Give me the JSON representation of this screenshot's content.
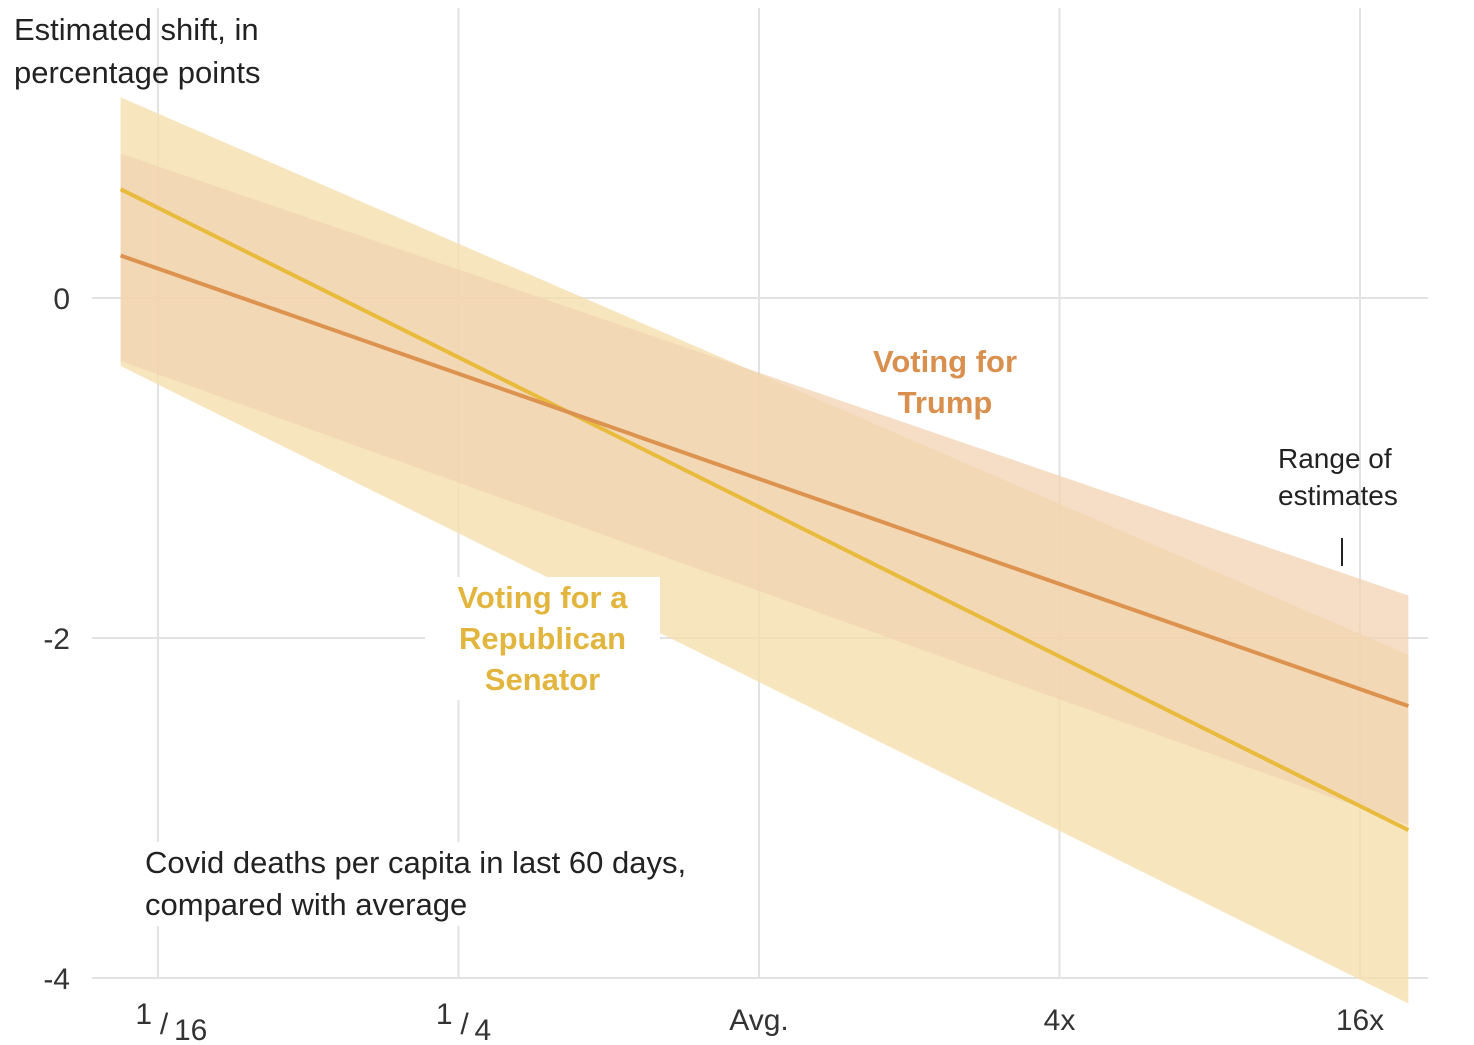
{
  "chart_data": {
    "type": "line",
    "ylabel": [
      "Estimated shift, in",
      "percentage points"
    ],
    "xlabel": [
      "Covid deaths per capita in last 60 days,",
      "compared with average"
    ],
    "x_scale": "log2",
    "x_ticks": [
      {
        "value": 0.0625,
        "num": "1",
        "den": "16"
      },
      {
        "value": 0.25,
        "num": "1",
        "den": "4"
      },
      {
        "value": 1,
        "label": "Avg."
      },
      {
        "value": 4,
        "label": "4x"
      },
      {
        "value": 16,
        "label": "16x"
      }
    ],
    "xlim": [
      0.0526,
      20
    ],
    "y_ticks": [
      0,
      -2,
      -4
    ],
    "ylim": [
      -4.1,
      1.2
    ],
    "grid": true,
    "series": [
      {
        "name": "Voting for a Republican Senator",
        "color": "#e8bb3c",
        "band_color": "#f5dfae",
        "x": [
          0.0526,
          20
        ],
        "y": [
          0.64,
          -3.13
        ],
        "lower": [
          -0.4,
          -4.15
        ],
        "upper": [
          1.18,
          -2.1
        ]
      },
      {
        "name": "Voting for Trump",
        "color": "#dd9350",
        "band_color": "#f2d3b2",
        "x": [
          0.0526,
          20
        ],
        "y": [
          0.25,
          -2.4
        ],
        "lower": [
          -0.37,
          -3.1
        ],
        "upper": [
          0.85,
          -1.75
        ]
      }
    ],
    "annotations": {
      "trump": [
        "Voting for",
        "Trump"
      ],
      "senator": [
        "Voting for a",
        "Republican",
        "Senator"
      ],
      "range": [
        "Range of",
        "estimates"
      ]
    }
  }
}
